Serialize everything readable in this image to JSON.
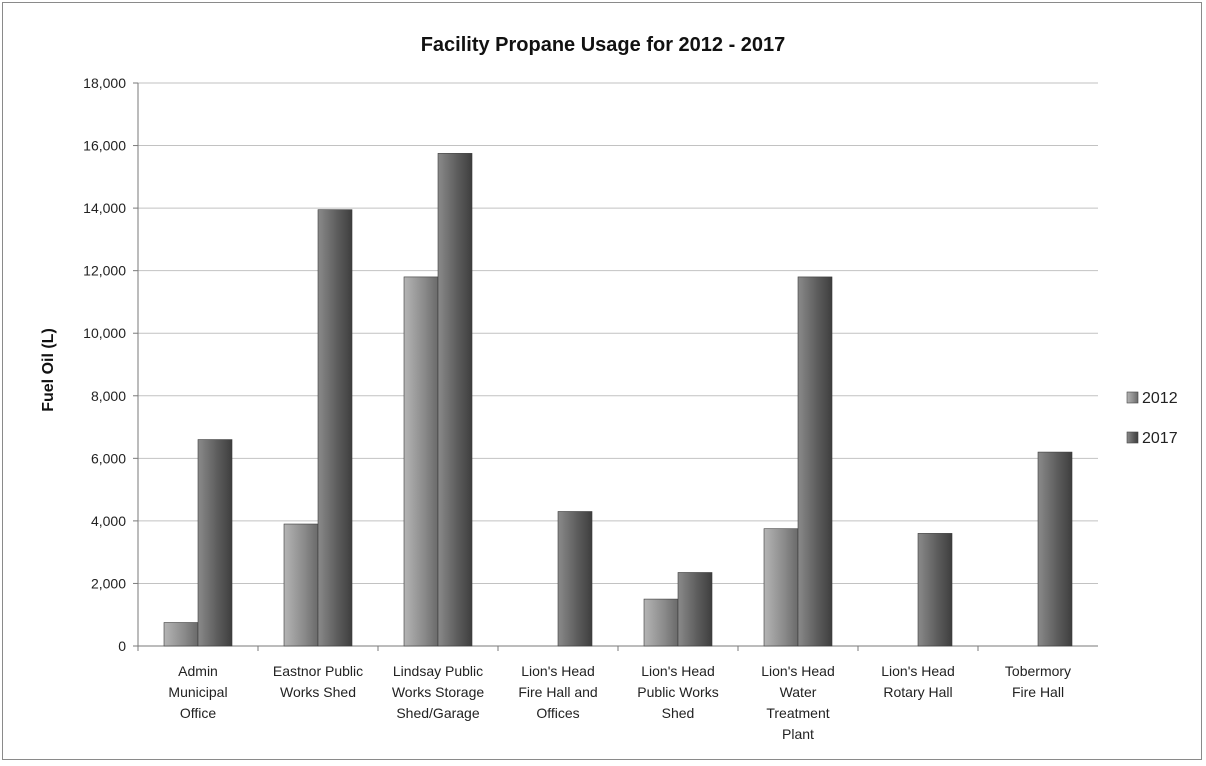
{
  "chart_data": {
    "type": "bar",
    "title": "Facility Propane Usage for 2012 - 2017",
    "ylabel": "Fuel Oil (L)",
    "xlabel": "",
    "ylim": [
      0,
      18000
    ],
    "yticks": [
      "0",
      "2,000",
      "4,000",
      "6,000",
      "8,000",
      "10,000",
      "12,000",
      "14,000",
      "16,000",
      "18,000"
    ],
    "ytick_values": [
      0,
      2000,
      4000,
      6000,
      8000,
      10000,
      12000,
      14000,
      16000,
      18000
    ],
    "grid": true,
    "legend_position": "right",
    "categories": [
      [
        "Admin",
        "Municipal",
        "Office"
      ],
      [
        "Eastnor Public",
        "Works Shed"
      ],
      [
        "Lindsay Public",
        "Works Storage",
        "Shed/Garage"
      ],
      [
        "Lion's Head",
        "Fire Hall and",
        "Offices"
      ],
      [
        "Lion's Head",
        "Public Works",
        "Shed"
      ],
      [
        "Lion's Head",
        "Water",
        "Treatment",
        "Plant"
      ],
      [
        "Lion's Head",
        "Rotary Hall"
      ],
      [
        "Tobermory",
        "Fire Hall"
      ]
    ],
    "series": [
      {
        "name": "2012",
        "color": "#9a9a9a",
        "values": [
          750,
          3900,
          11800,
          0,
          1500,
          3750,
          0,
          0
        ]
      },
      {
        "name": "2017",
        "color": "#6e6e6e",
        "values": [
          6600,
          13950,
          15750,
          4300,
          2350,
          11800,
          3600,
          6200
        ]
      }
    ]
  }
}
